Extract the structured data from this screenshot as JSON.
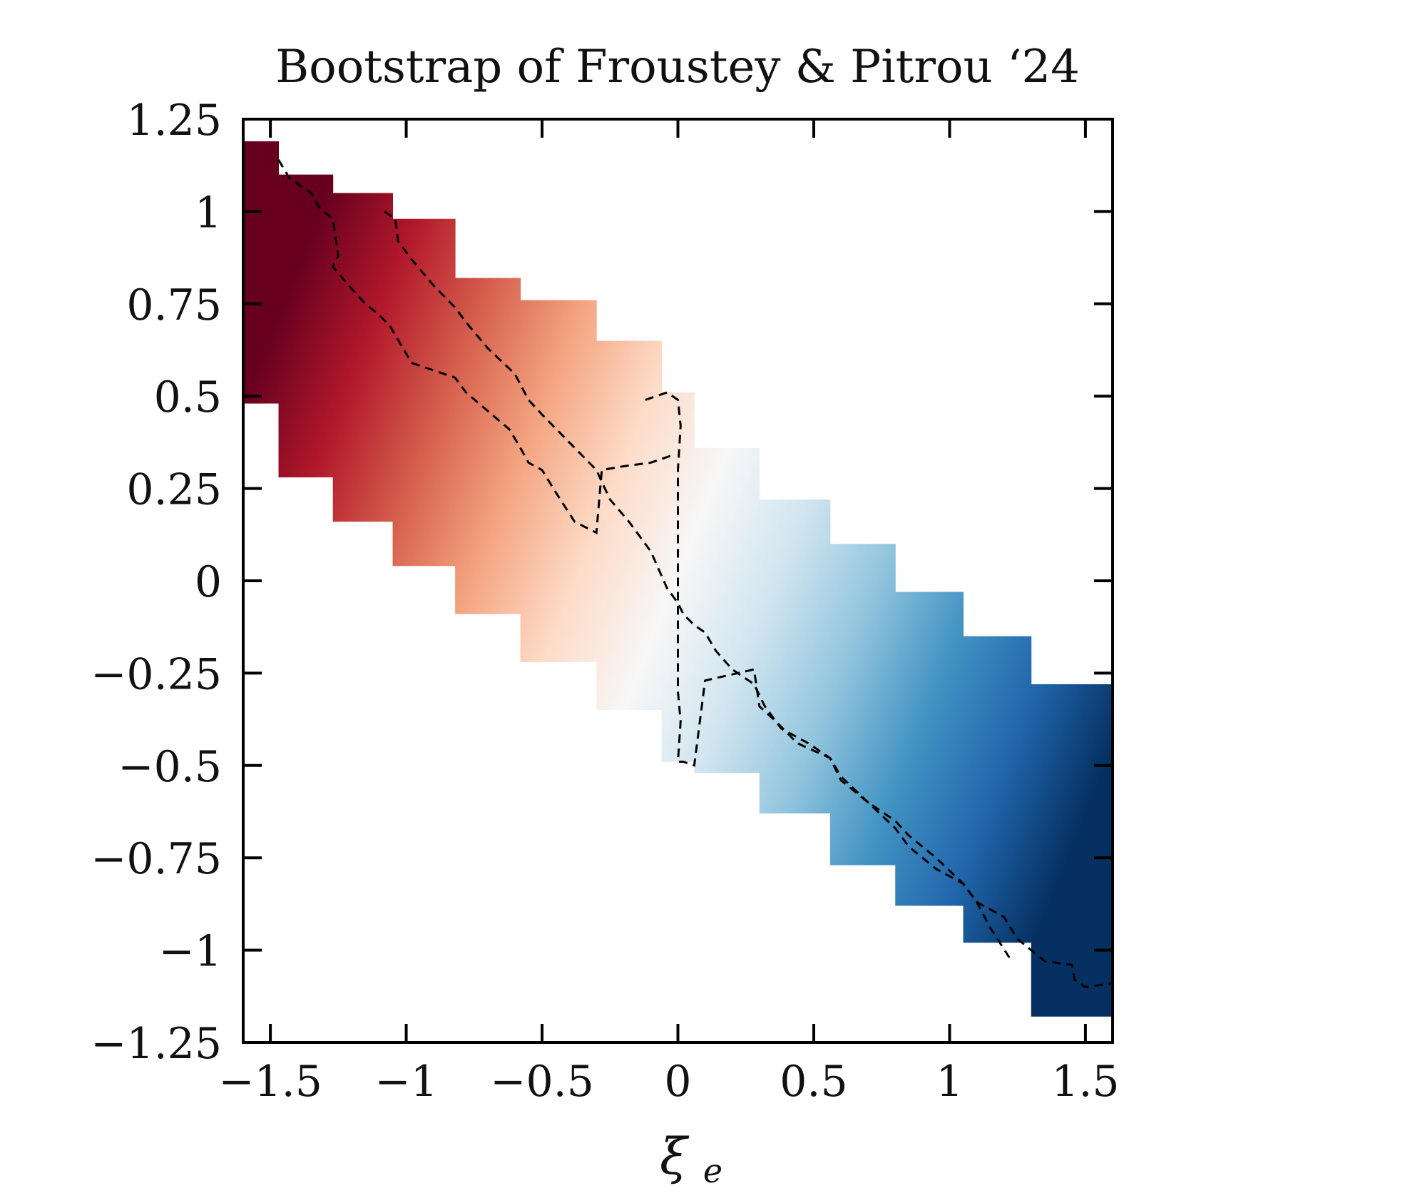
{
  "chart_data": {
    "type": "heatmap",
    "title": "Bootstrap of Froustey & Pitrou ‘24",
    "xlabel": {
      "main": "ξ",
      "sub": "e"
    },
    "ylabel": "",
    "xlim": [
      -1.6,
      1.6
    ],
    "ylim": [
      -1.25,
      1.25
    ],
    "xticks": [
      -1.5,
      -1,
      -0.5,
      0,
      0.5,
      1,
      1.5
    ],
    "xtick_labels": [
      "−1.5",
      "−1",
      "−0.5",
      "0",
      "0.5",
      "1",
      "1.5"
    ],
    "yticks": [
      1.25,
      1,
      0.75,
      0.5,
      0.25,
      0,
      -0.25,
      -0.5,
      -0.75,
      -1,
      -1.25
    ],
    "ytick_labels": [
      "1.25",
      "1",
      "0.75",
      "0.5",
      "0.25",
      "0",
      "−0.25",
      "−0.5",
      "−0.75",
      "−1",
      "−1.25"
    ],
    "colormap": [
      "#67001f",
      "#b2182b",
      "#d6604d",
      "#f4a582",
      "#fddbc7",
      "#f7f7f7",
      "#d1e5f0",
      "#92c5de",
      "#4393c3",
      "#2166ac",
      "#053061"
    ],
    "band_strips": [
      {
        "x": [
          -1.6,
          -1.47
        ],
        "y_top": 1.19,
        "y_bottom": 0.48
      },
      {
        "x": [
          -1.47,
          -1.27
        ],
        "y_top": 1.1,
        "y_bottom": 0.28
      },
      {
        "x": [
          -1.27,
          -1.05
        ],
        "y_top": 1.05,
        "y_bottom": 0.16
      },
      {
        "x": [
          -1.05,
          -0.82
        ],
        "y_top": 0.98,
        "y_bottom": 0.04
      },
      {
        "x": [
          -0.82,
          -0.58
        ],
        "y_top": 0.82,
        "y_bottom": -0.09
      },
      {
        "x": [
          -0.58,
          -0.3
        ],
        "y_top": 0.76,
        "y_bottom": -0.22
      },
      {
        "x": [
          -0.3,
          -0.06
        ],
        "y_top": 0.65,
        "y_bottom": -0.35
      },
      {
        "x": [
          -0.06,
          0.06
        ],
        "y_top": 0.51,
        "y_bottom": -0.49
      },
      {
        "x": [
          0.06,
          0.3
        ],
        "y_top": 0.36,
        "y_bottom": -0.52
      },
      {
        "x": [
          0.3,
          0.56
        ],
        "y_top": 0.22,
        "y_bottom": -0.63
      },
      {
        "x": [
          0.56,
          0.8
        ],
        "y_top": 0.1,
        "y_bottom": -0.77
      },
      {
        "x": [
          0.8,
          1.05
        ],
        "y_top": -0.03,
        "y_bottom": -0.88
      },
      {
        "x": [
          1.05,
          1.3
        ],
        "y_top": -0.15,
        "y_bottom": -0.98
      },
      {
        "x": [
          1.3,
          1.6
        ],
        "y_top": -0.28,
        "y_bottom": -1.18
      }
    ],
    "contours": [
      {
        "name": "upper",
        "style": "dashed",
        "x": [
          -1.47,
          -1.43,
          -1.35,
          -1.32,
          -1.27,
          -1.25,
          -1.27,
          -1.2,
          -1.15,
          -1.1,
          -1.06,
          -1.02,
          -0.98,
          -0.9,
          -0.82,
          -0.78,
          -0.7,
          -0.62,
          -0.58,
          -0.55,
          -0.5,
          -0.45,
          -0.38,
          -0.3,
          -0.28,
          -0.2,
          -0.1,
          -0.02
        ],
        "y": [
          1.14,
          1.09,
          1.05,
          1.01,
          0.98,
          0.88,
          0.85,
          0.79,
          0.75,
          0.72,
          0.69,
          0.64,
          0.59,
          0.57,
          0.55,
          0.51,
          0.46,
          0.41,
          0.36,
          0.32,
          0.3,
          0.24,
          0.16,
          0.13,
          0.3,
          0.31,
          0.32,
          0.34
        ]
      },
      {
        "name": "middle",
        "style": "dashed",
        "x": [
          -1.08,
          -1.04,
          -1.03,
          -0.98,
          -0.9,
          -0.82,
          -0.78,
          -0.7,
          -0.6,
          -0.55,
          -0.5,
          -0.42,
          -0.3,
          -0.25,
          -0.18,
          -0.1,
          -0.04,
          0.0,
          0.02,
          0.06,
          0.1,
          0.14,
          0.2,
          0.28,
          0.32,
          0.38,
          0.48,
          0.56,
          0.6,
          0.7,
          0.8,
          0.85,
          0.95,
          1.05,
          1.1,
          1.2,
          1.25,
          1.3,
          1.35,
          1.45,
          1.46,
          1.5,
          1.6
        ],
        "y": [
          1.0,
          0.98,
          0.92,
          0.87,
          0.8,
          0.74,
          0.7,
          0.63,
          0.56,
          0.49,
          0.45,
          0.39,
          0.3,
          0.22,
          0.16,
          0.08,
          -0.02,
          -0.06,
          -0.09,
          -0.12,
          -0.14,
          -0.19,
          -0.24,
          -0.28,
          -0.34,
          -0.4,
          -0.44,
          -0.48,
          -0.53,
          -0.6,
          -0.67,
          -0.72,
          -0.78,
          -0.82,
          -0.87,
          -0.91,
          -0.97,
          -1.0,
          -1.03,
          -1.04,
          -1.08,
          -1.1,
          -1.09
        ]
      },
      {
        "name": "lower",
        "style": "dashed",
        "x": [
          -0.12,
          -0.04,
          0.0,
          0.01,
          0.0,
          0.0,
          0.01,
          0.0,
          0.02,
          0.06,
          0.1,
          0.16,
          0.22,
          0.28,
          0.3,
          0.36,
          0.44,
          0.56,
          0.6,
          0.7,
          0.8,
          0.85,
          0.95,
          1.05,
          1.1,
          1.15,
          1.22
        ],
        "y": [
          0.49,
          0.51,
          0.49,
          0.42,
          0.3,
          -0.3,
          -0.38,
          -0.49,
          -0.49,
          -0.5,
          -0.27,
          -0.26,
          -0.25,
          -0.24,
          -0.34,
          -0.38,
          -0.44,
          -0.48,
          -0.54,
          -0.6,
          -0.65,
          -0.69,
          -0.75,
          -0.82,
          -0.87,
          -0.94,
          -1.02
        ]
      }
    ]
  }
}
